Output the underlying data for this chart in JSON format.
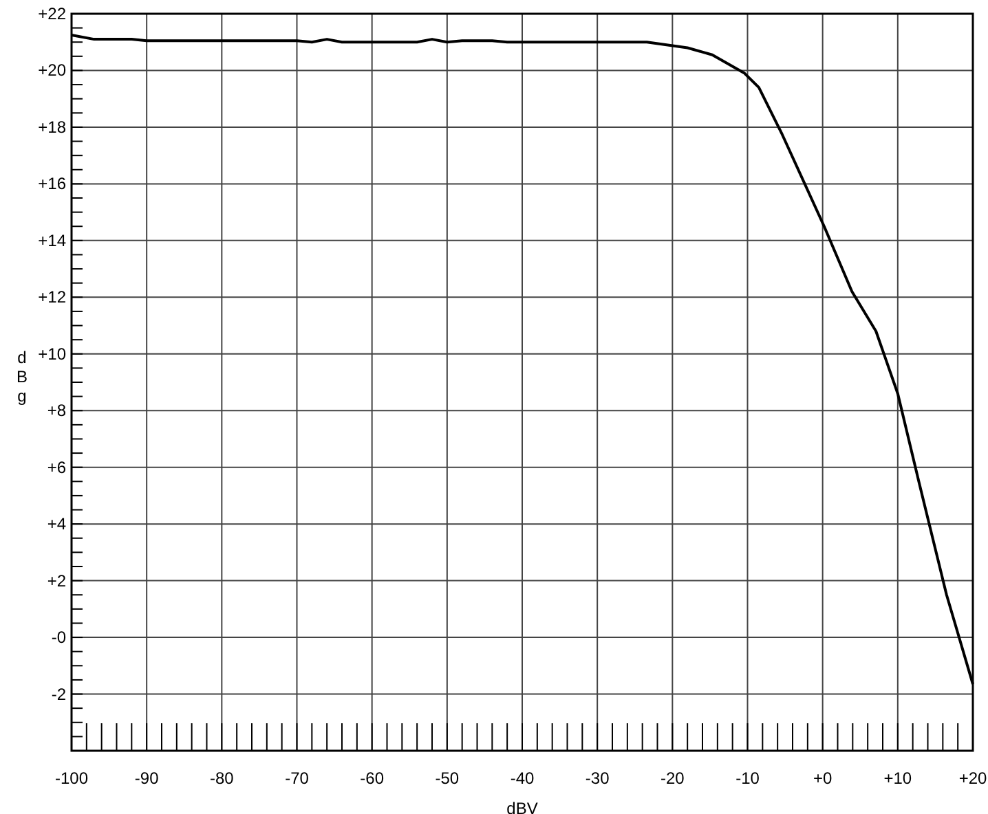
{
  "chart_data": {
    "type": "line",
    "xlabel": "dBV",
    "ylabel": "dBg",
    "x": [
      -100,
      -97,
      -92,
      -90,
      -80,
      -70,
      -68,
      -66,
      -64,
      -54,
      -52,
      -50,
      -48,
      -44,
      -42,
      -34,
      -28,
      -23.4,
      -18,
      -14.7,
      -10.4,
      -8.5,
      -5.4,
      0.2,
      3.9,
      7.1,
      10,
      12.8,
      16.5,
      20
    ],
    "series": [
      {
        "color": "#000000",
        "values": [
          21.25,
          21.1,
          21.1,
          21.05,
          21.05,
          21.05,
          21.0,
          21.1,
          21.0,
          21.0,
          21.1,
          21.0,
          21.05,
          21.05,
          21.0,
          21.0,
          21.0,
          21.0,
          20.8,
          20.55,
          19.9,
          19.4,
          17.75,
          14.5,
          12.2,
          10.8,
          8.6,
          5.5,
          1.5,
          -1.65
        ]
      }
    ],
    "xlim": [
      -100,
      20
    ],
    "ylim": [
      -4,
      22
    ],
    "xticks": [
      {
        "value": -100,
        "label": "-100"
      },
      {
        "value": -90,
        "label": "-90"
      },
      {
        "value": -80,
        "label": "-80"
      },
      {
        "value": -70,
        "label": "-70"
      },
      {
        "value": -60,
        "label": "-60"
      },
      {
        "value": -50,
        "label": "-50"
      },
      {
        "value": -40,
        "label": "-40"
      },
      {
        "value": -30,
        "label": "-30"
      },
      {
        "value": -20,
        "label": "-20"
      },
      {
        "value": -10,
        "label": "-10"
      },
      {
        "value": 0,
        "label": "+0"
      },
      {
        "value": 10,
        "label": "+10"
      },
      {
        "value": 20,
        "label": "+20"
      }
    ],
    "yticks": [
      {
        "value": -2,
        "label": "-2"
      },
      {
        "value": 0,
        "label": "-0"
      },
      {
        "value": 2,
        "label": "+2"
      },
      {
        "value": 4,
        "label": "+4"
      },
      {
        "value": 6,
        "label": "+6"
      },
      {
        "value": 8,
        "label": "+8"
      },
      {
        "value": 10,
        "label": "+10"
      },
      {
        "value": 12,
        "label": "+12"
      },
      {
        "value": 14,
        "label": "+14"
      },
      {
        "value": 16,
        "label": "+16"
      },
      {
        "value": 18,
        "label": "+18"
      },
      {
        "value": 20,
        "label": "+20"
      },
      {
        "value": 22,
        "label": "+22"
      }
    ],
    "grid": true,
    "marker": "none",
    "line_style": "solid"
  }
}
